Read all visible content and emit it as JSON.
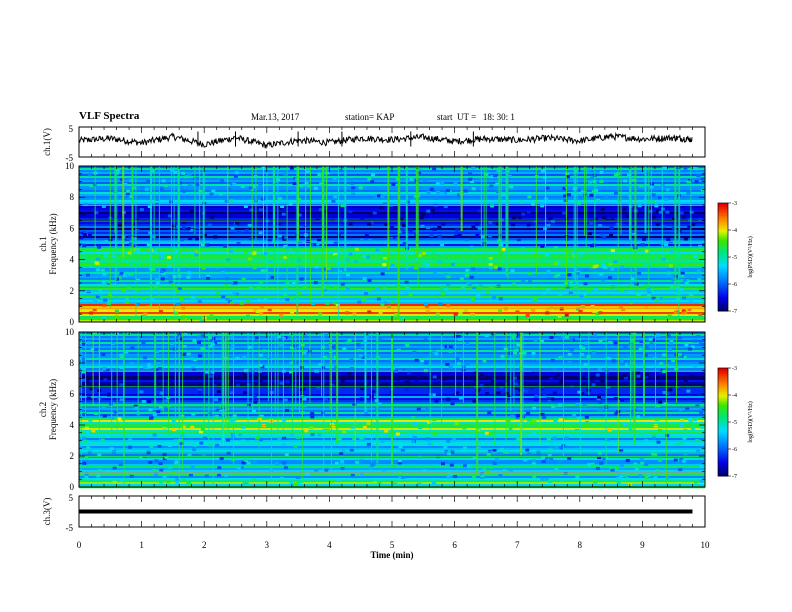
{
  "header": {
    "title": "VLF Spectra",
    "date": "Mar.13, 2017",
    "station": "station= KAP",
    "start": "start  UT =   18: 30: 1"
  },
  "chart_data": [
    {
      "type": "line",
      "panel": "ch1-waveform",
      "ylabel": "ch.1(V)",
      "ylim": [
        -5,
        5
      ],
      "yticks": [
        "5",
        "-5"
      ],
      "xlim": [
        0,
        10
      ],
      "x": [
        0,
        0.5,
        1,
        1.5,
        2,
        2.5,
        3,
        3.5,
        4,
        4.5,
        5,
        5.5,
        6,
        6.5,
        7,
        7.5,
        8,
        8.5,
        9,
        9.5,
        9.8
      ],
      "y": [
        0.5,
        1.2,
        -0.3,
        1.8,
        -0.8,
        1.5,
        -1.2,
        0.6,
        -0.2,
        1.3,
        0.8,
        1.6,
        0.2,
        1.1,
        0.6,
        1.3,
        0.4,
        1.9,
        1.0,
        1.4,
        0.9
      ],
      "color": "#000000"
    },
    {
      "type": "heatmap",
      "panel": "ch1-spectrogram",
      "ylabel": "ch.1\nFrequency (kHz)",
      "ylim": [
        0,
        10
      ],
      "yticks": [
        "0",
        "2",
        "4",
        "6",
        "8",
        "10"
      ],
      "xlim": [
        0,
        10
      ],
      "colorbar": {
        "label": "log(PSD)(V²/Hz)",
        "range": [
          -7,
          -3
        ],
        "ticks": [
          "-3",
          "-4",
          "-5",
          "-6",
          "-7"
        ]
      },
      "bands_kHz_level": [
        [
          0,
          0.5,
          -4.5
        ],
        [
          0.5,
          1.2,
          -3.8
        ],
        [
          1.2,
          2.5,
          -5.2
        ],
        [
          2.5,
          3.5,
          -5.5
        ],
        [
          3.5,
          4.8,
          -4.8
        ],
        [
          4.8,
          5.3,
          -5.8
        ],
        [
          5.3,
          6.3,
          -6.3
        ],
        [
          6.3,
          7.5,
          -6.7
        ],
        [
          7.5,
          10,
          -5.6
        ]
      ]
    },
    {
      "type": "heatmap",
      "panel": "ch2-spectrogram",
      "ylabel": "ch.2\nFrequency (kHz)",
      "ylim": [
        0,
        10
      ],
      "yticks": [
        "0",
        "2",
        "4",
        "6",
        "8",
        "10"
      ],
      "xlim": [
        0,
        10
      ],
      "colorbar": {
        "label": "log(PSD)(V²/Hz)",
        "range": [
          -7,
          -3
        ],
        "ticks": [
          "-3",
          "-4",
          "-5",
          "-6",
          "-7"
        ]
      },
      "bands_kHz_level": [
        [
          0,
          0.5,
          -4.8
        ],
        [
          0.5,
          1.5,
          -5.3
        ],
        [
          1.5,
          2.5,
          -5.6
        ],
        [
          2.5,
          3.5,
          -5.4
        ],
        [
          3.5,
          4.5,
          -4.6
        ],
        [
          4.5,
          5.5,
          -5.6
        ],
        [
          5.5,
          6.3,
          -6.2
        ],
        [
          6.3,
          7.5,
          -6.8
        ],
        [
          7.5,
          10,
          -5.6
        ]
      ]
    },
    {
      "type": "line",
      "panel": "ch3-waveform",
      "ylabel": "ch.3(V)",
      "ylim": [
        -5,
        5
      ],
      "yticks": [
        "5",
        "-5"
      ],
      "xlim": [
        0,
        10
      ],
      "x": [
        0,
        9.8
      ],
      "y": [
        0,
        0
      ],
      "color": "#000000"
    }
  ],
  "xaxis": {
    "label": "Time (min)",
    "ticks": [
      "0",
      "1",
      "2",
      "3",
      "4",
      "5",
      "6",
      "7",
      "8",
      "9",
      "10"
    ]
  }
}
